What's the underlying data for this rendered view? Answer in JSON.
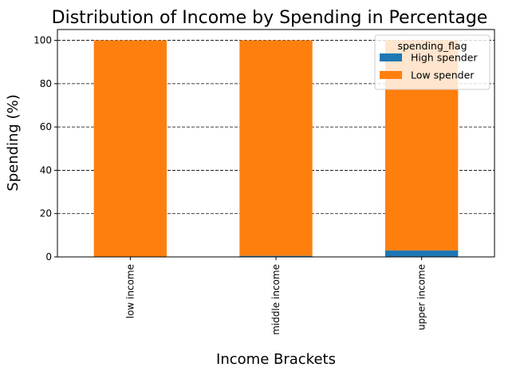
{
  "chart_data": {
    "type": "bar",
    "stacked": true,
    "title": "Distribution of Income by Spending in Percentage",
    "xlabel": "Income Brackets",
    "ylabel": "Spending (%)",
    "categories": [
      "low income",
      "middle income",
      "upper income"
    ],
    "series": [
      {
        "name": "High spender",
        "color": "#1f77b4",
        "values": [
          0.1,
          0.5,
          3.0
        ]
      },
      {
        "name": "Low spender",
        "color": "#ff7f0e",
        "values": [
          99.9,
          99.5,
          97.0
        ]
      }
    ],
    "ylim": [
      0,
      105
    ],
    "yticks": [
      0,
      20,
      40,
      60,
      80,
      100
    ],
    "grid": "y-dashed",
    "legend": {
      "title": "spending_flag",
      "position": "top-right"
    }
  }
}
